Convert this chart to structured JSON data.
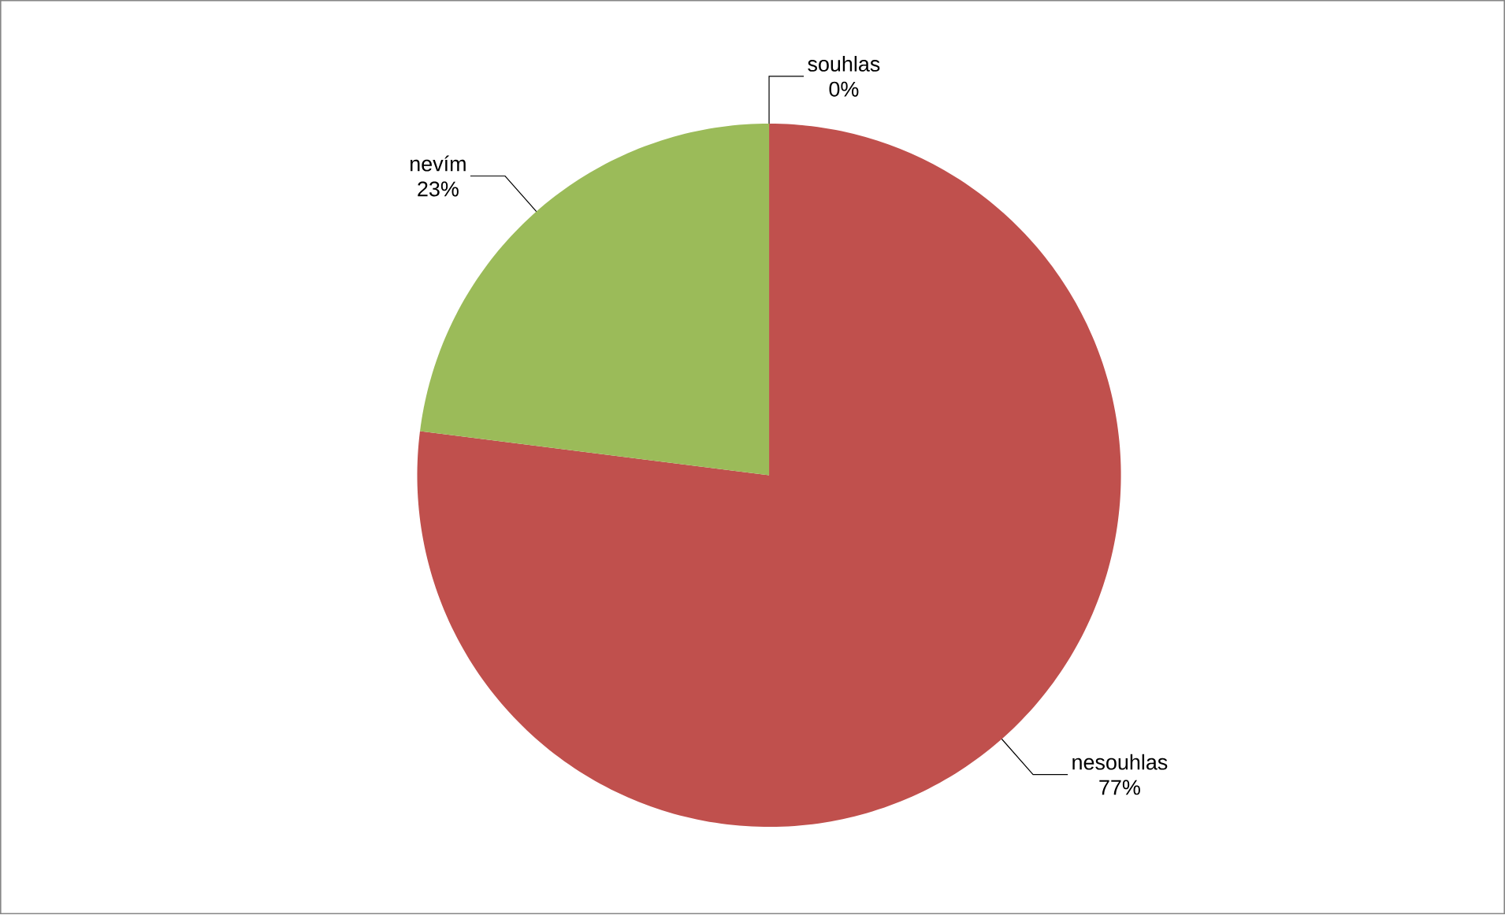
{
  "chart_data": {
    "type": "pie",
    "categories": [
      "souhlas",
      "nesouhlas",
      "nevím"
    ],
    "values": [
      0,
      77,
      23
    ],
    "colors": [
      "#4f81bd",
      "#c0504d",
      "#9bbb59"
    ],
    "value_labels": [
      "0%",
      "77%",
      "23%"
    ]
  }
}
